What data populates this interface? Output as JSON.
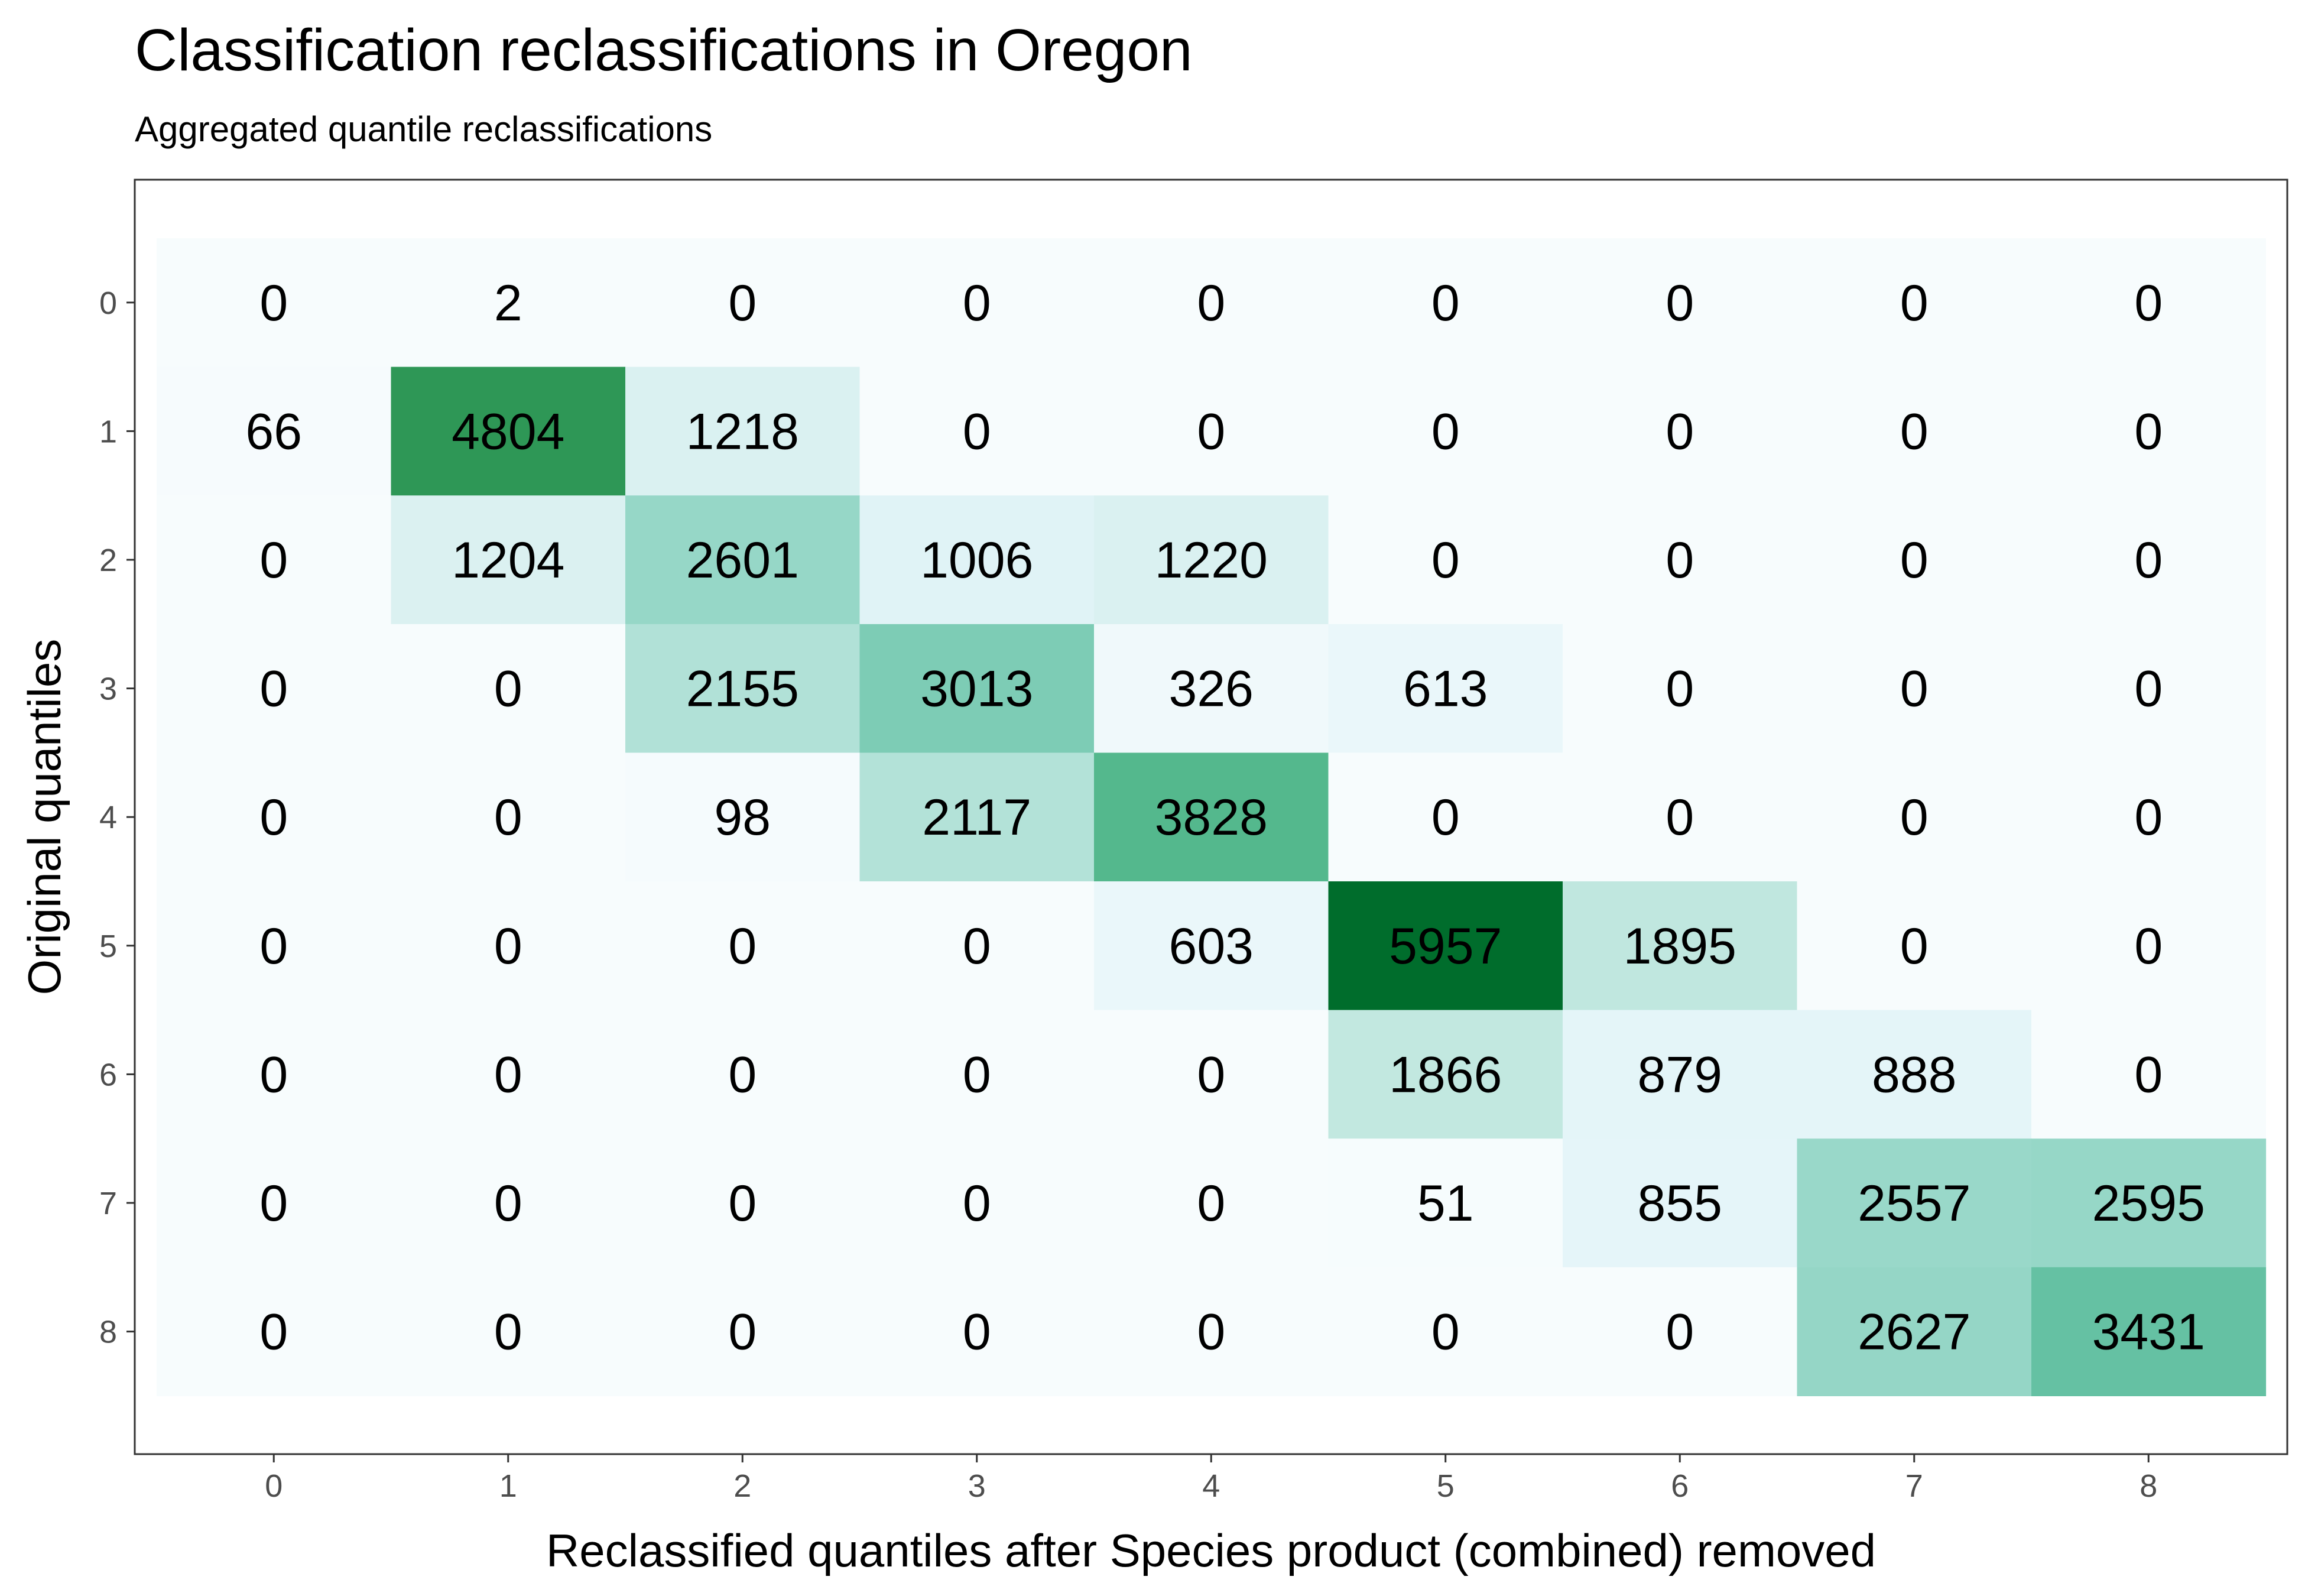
{
  "title": "Classification reclassifications in Oregon",
  "subtitle": "Aggregated quantile reclassifications",
  "chart_data": {
    "type": "heatmap",
    "title": "Classification reclassifications in Oregon",
    "subtitle": "Aggregated quantile reclassifications",
    "xlabel": "Reclassified quantiles after Species product (combined) removed",
    "ylabel": "Original quantiles",
    "x_categories": [
      "0",
      "1",
      "2",
      "3",
      "4",
      "5",
      "6",
      "7",
      "8"
    ],
    "y_categories": [
      "0",
      "1",
      "2",
      "3",
      "4",
      "5",
      "6",
      "7",
      "8"
    ],
    "values": [
      [
        0,
        2,
        0,
        0,
        0,
        0,
        0,
        0,
        0
      ],
      [
        66,
        4804,
        1218,
        0,
        0,
        0,
        0,
        0,
        0
      ],
      [
        0,
        1204,
        2601,
        1006,
        1220,
        0,
        0,
        0,
        0
      ],
      [
        0,
        0,
        2155,
        3013,
        326,
        613,
        0,
        0,
        0
      ],
      [
        0,
        0,
        98,
        2117,
        3828,
        0,
        0,
        0,
        0
      ],
      [
        0,
        0,
        0,
        0,
        603,
        5957,
        1895,
        0,
        0
      ],
      [
        0,
        0,
        0,
        0,
        0,
        1866,
        879,
        888,
        0
      ],
      [
        0,
        0,
        0,
        0,
        0,
        51,
        855,
        2557,
        2595
      ],
      [
        0,
        0,
        0,
        0,
        0,
        0,
        0,
        2627,
        3431
      ]
    ],
    "colors": {
      "low": "#f7fcfd",
      "high": "#006d2c",
      "ramp": [
        "#f7fcfd",
        "#e5f5f9",
        "#ccece6",
        "#99d8c9",
        "#66c2a4",
        "#41ae76",
        "#238b45",
        "#006d2c"
      ]
    },
    "grid": false,
    "legend": "none"
  }
}
